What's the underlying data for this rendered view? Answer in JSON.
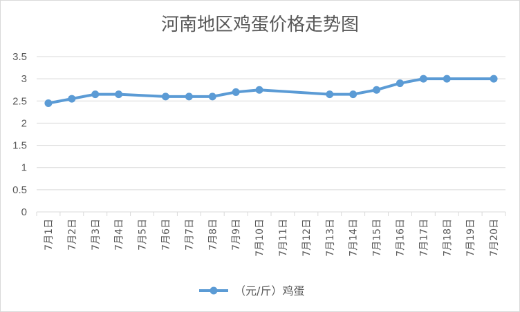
{
  "chart_data": {
    "type": "line",
    "title": "河南地区鸡蛋价格走势图",
    "xlabel": "",
    "ylabel": "",
    "ylim": [
      0,
      3.5
    ],
    "yticks": [
      "0",
      "0.5",
      "1",
      "1.5",
      "2",
      "2.5",
      "3",
      "3.5"
    ],
    "grid": true,
    "legend_position": "bottom",
    "categories": [
      "7月1日",
      "7月2日",
      "7月3日",
      "7月4日",
      "7月5日",
      "7月6日",
      "7月7日",
      "7月8日",
      "7月9日",
      "7月10日",
      "7月11日",
      "7月12日",
      "7月13日",
      "7月14日",
      "7月15日",
      "7月16日",
      "7月17日",
      "7月18日",
      "7月19日",
      "7月20日"
    ],
    "series": [
      {
        "name": "（元/斤）鸡蛋",
        "color": "#5b9bd5",
        "values": [
          2.45,
          2.55,
          2.65,
          2.65,
          null,
          2.6,
          2.6,
          2.6,
          2.7,
          2.75,
          null,
          null,
          2.65,
          2.65,
          2.75,
          2.9,
          3.0,
          3.0,
          null,
          3.0
        ]
      }
    ]
  }
}
